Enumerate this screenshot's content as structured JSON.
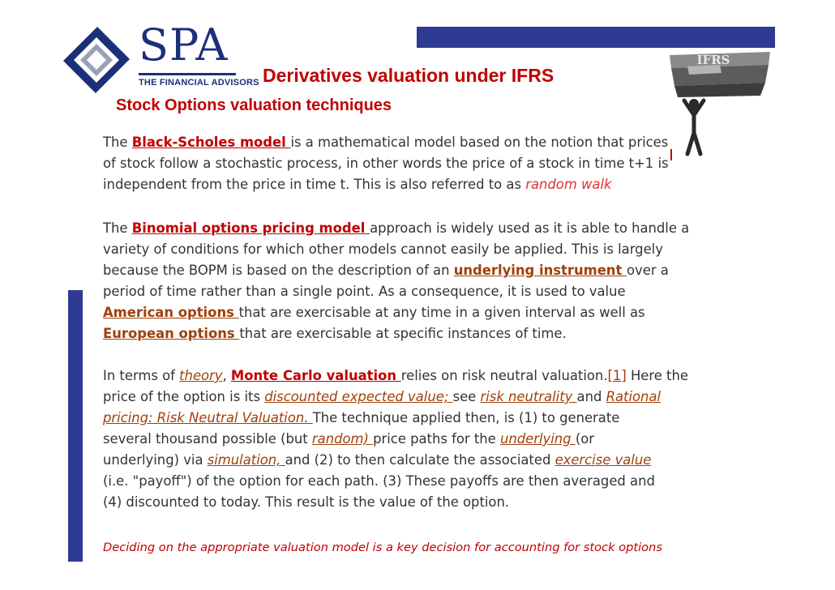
{
  "logo": {
    "name": "SPA",
    "tagline": "THE FINANCIAL ADVISORS",
    "image_text": "IFRS"
  },
  "colors": {
    "accent_red": "#c00000",
    "link_brown": "#a0400a",
    "brand_blue": "#1b2f7a",
    "bar_blue": "#2e3a94"
  },
  "slide": {
    "title": "Derivatives valuation under IFRS",
    "subtitle": "Stock Options valuation techniques",
    "footer": "Deciding on the appropriate valuation model is a key decision for accounting for stock options"
  },
  "p1": {
    "l1": {
      "a": "The ",
      "k": "Black-Scholes model ",
      "b": "is a mathematical model based on the notion that  prices"
    },
    "l2": "of stock follow a stochastic process, in other words the price of a stock in  time t+1 is",
    "l3": {
      "a": "independent from the price in time t. This is also referred to as ",
      "k": "random walk"
    }
  },
  "p2": {
    "l1": {
      "a": "The ",
      "k": "Binomial options pricing model ",
      "b": "approach is widely used as it is able to handle a"
    },
    "l2": "variety of conditions for which other models cannot easily be applied. This is  largely",
    "l3": {
      "a": "because the BOPM is based on the description of an ",
      "k": "underlying instrument ",
      "b": "over a"
    },
    "l4": "period of time rather than a single point. As a consequence, it is used to value",
    "l5": {
      "k": "American options ",
      "b": "that are exercisable at any time in a given interval as well as"
    },
    "l6": {
      "k": "European options ",
      "b": "that are exercisable at specific instances of time."
    }
  },
  "p3": {
    "l1": {
      "a": "In terms of ",
      "k1": "theory",
      "b": ", ",
      "k2": "Monte Carlo valuation ",
      "c": "relies on risk neutral valuation.",
      "ref": "[1]",
      "d": " Here the"
    },
    "l2": {
      "a": "price of the option is its ",
      "k1": "discounted expected value; ",
      "b": "see ",
      "k2": "risk neutrality ",
      "c": "and ",
      "k3": "Rational"
    },
    "l3": {
      "k": "pricing: Risk Neutral Valuation. ",
      "b": "The technique applied then, is (1) to generate"
    },
    "l4": {
      "a": "several thousand possible (but ",
      "k1": "random) ",
      "b": "price paths for the ",
      "k2": "underlying ",
      "c": "(or"
    },
    "l5": {
      "a": "underlying) via ",
      "k1": "simulation, ",
      "b": "and (2) to then calculate the associated ",
      "k2": "exercise value"
    },
    "l6": "(i.e. \"payoff\") of the option for each path. (3) These payoffs are then averaged and",
    "l7": "(4) discounted to today. This result is the value of the option."
  }
}
